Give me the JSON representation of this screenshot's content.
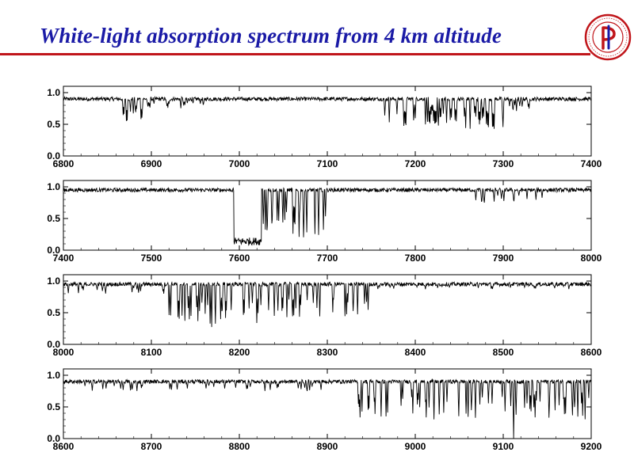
{
  "slide": {
    "title": "White-light absorption spectrum from 4 km altitude",
    "title_color": "#1a1aa6",
    "rule_color": "#c0151a",
    "logo_icon": "institute-of-physics-seal-icon",
    "logo_color": "#c0151a"
  },
  "chart_data": [
    {
      "type": "line",
      "xlim": [
        6800,
        7400
      ],
      "ylim": [
        0.0,
        1.1
      ],
      "xticks": [
        "6800",
        "6900",
        "7000",
        "7100",
        "7200",
        "7300",
        "7400"
      ],
      "yticks": [
        "0.0",
        "0.5",
        "1.0"
      ],
      "baseline": 0.9,
      "bands": [
        {
          "start": 6865,
          "end": 6890,
          "depth": 0.35,
          "count": 14
        },
        {
          "start": 6890,
          "end": 6960,
          "depth": 0.15,
          "count": 18
        },
        {
          "start": 7160,
          "end": 7240,
          "depth": 0.45,
          "count": 30
        },
        {
          "start": 7240,
          "end": 7300,
          "depth": 0.5,
          "count": 22
        },
        {
          "start": 7300,
          "end": 7340,
          "depth": 0.2,
          "count": 10
        }
      ]
    },
    {
      "type": "line",
      "xlim": [
        7400,
        8000
      ],
      "ylim": [
        0.0,
        1.1
      ],
      "xticks": [
        "7400",
        "7500",
        "7600",
        "7700",
        "7800",
        "7900",
        "8000"
      ],
      "yticks": [
        "0.0",
        "0.5",
        "1.0"
      ],
      "baseline": 0.95,
      "bands": [
        {
          "start": 7594,
          "end": 7625,
          "depth": 0.85,
          "count": 0,
          "continuum": true
        },
        {
          "start": 7625,
          "end": 7700,
          "depth": 0.75,
          "count": 24
        },
        {
          "start": 7860,
          "end": 7960,
          "depth": 0.2,
          "count": 16
        }
      ]
    },
    {
      "type": "line",
      "xlim": [
        8000,
        8600
      ],
      "ylim": [
        0.0,
        1.1
      ],
      "xticks": [
        "8000",
        "8100",
        "8200",
        "8300",
        "8400",
        "8500",
        "8600"
      ],
      "yticks": [
        "0.0",
        "0.5",
        "1.0"
      ],
      "baseline": 0.95,
      "bands": [
        {
          "start": 8000,
          "end": 8120,
          "depth": 0.15,
          "count": 16
        },
        {
          "start": 8120,
          "end": 8240,
          "depth": 0.7,
          "count": 36
        },
        {
          "start": 8240,
          "end": 8350,
          "depth": 0.55,
          "count": 30
        },
        {
          "start": 8350,
          "end": 8600,
          "depth": 0.08,
          "count": 20
        }
      ]
    },
    {
      "type": "line",
      "xlim": [
        8600,
        9200
      ],
      "ylim": [
        0.0,
        1.1
      ],
      "xticks": [
        "8600",
        "8700",
        "8800",
        "8900",
        "9000",
        "9100",
        "9200"
      ],
      "yticks": [
        "0.0",
        "0.5",
        "1.0"
      ],
      "baseline": 0.9,
      "bands": [
        {
          "start": 8600,
          "end": 8900,
          "depth": 0.15,
          "count": 40
        },
        {
          "start": 8930,
          "end": 9200,
          "depth": 0.6,
          "count": 70
        },
        {
          "start": 9112,
          "end": 9116,
          "depth": 0.95,
          "count": 1
        }
      ]
    }
  ]
}
